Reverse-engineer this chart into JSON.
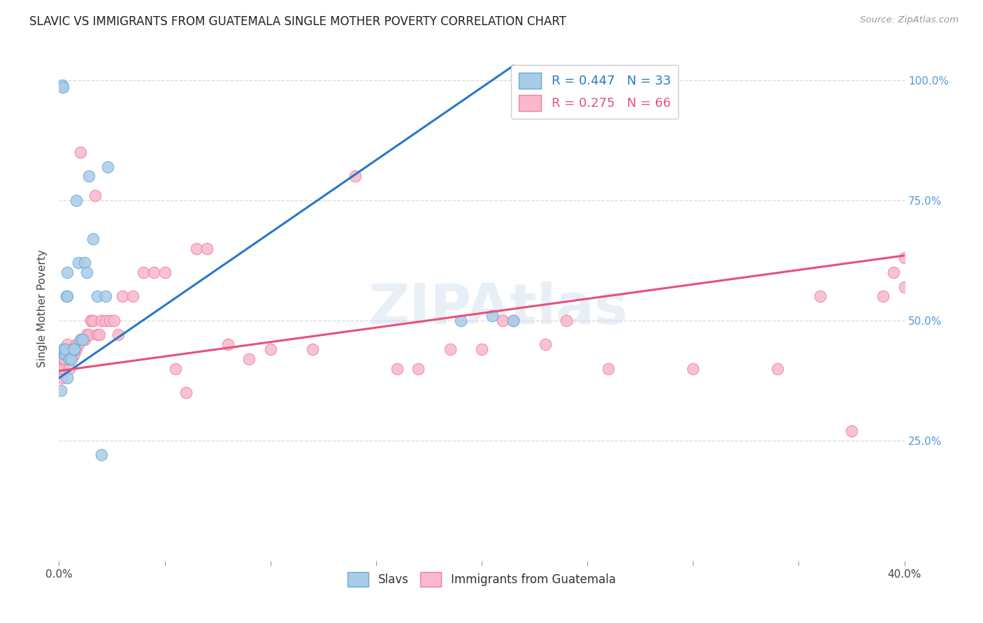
{
  "title": "SLAVIC VS IMMIGRANTS FROM GUATEMALA SINGLE MOTHER POVERTY CORRELATION CHART",
  "source": "Source: ZipAtlas.com",
  "ylabel": "Single Mother Poverty",
  "legend_label_1": "R = 0.447   N = 33",
  "legend_label_2": "R = 0.275   N = 66",
  "legend_label_bottom_1": "Slavs",
  "legend_label_bottom_2": "Immigrants from Guatemala",
  "watermark": "ZIPAtlas",
  "slavs_color": "#a8cce8",
  "slavs_edge_color": "#6aaad4",
  "guatemala_color": "#f9b8cc",
  "guatemala_edge_color": "#f080a0",
  "slavs_line_color": "#2878c8",
  "guatemala_line_color": "#e8507a",
  "background_color": "#ffffff",
  "grid_color": "#d8d8d8",
  "slavs_x": [
    0.0008,
    0.0015,
    0.0018,
    0.002,
    0.002,
    0.0025,
    0.003,
    0.003,
    0.0035,
    0.004,
    0.004,
    0.004,
    0.005,
    0.005,
    0.006,
    0.007,
    0.007,
    0.007,
    0.008,
    0.009,
    0.01,
    0.011,
    0.012,
    0.013,
    0.014,
    0.016,
    0.018,
    0.02,
    0.022,
    0.023,
    0.19,
    0.205,
    0.215
  ],
  "slavs_y": [
    0.355,
    0.99,
    0.985,
    0.44,
    0.435,
    0.43,
    0.43,
    0.44,
    0.55,
    0.55,
    0.6,
    0.38,
    0.42,
    0.42,
    0.42,
    0.44,
    0.44,
    0.44,
    0.75,
    0.62,
    0.46,
    0.46,
    0.62,
    0.6,
    0.8,
    0.67,
    0.55,
    0.22,
    0.55,
    0.82,
    0.5,
    0.51,
    0.5
  ],
  "guatemala_x": [
    0.0005,
    0.001,
    0.0015,
    0.002,
    0.002,
    0.0025,
    0.003,
    0.003,
    0.004,
    0.004,
    0.005,
    0.005,
    0.006,
    0.006,
    0.007,
    0.007,
    0.008,
    0.008,
    0.009,
    0.01,
    0.011,
    0.012,
    0.013,
    0.014,
    0.015,
    0.015,
    0.016,
    0.017,
    0.018,
    0.019,
    0.02,
    0.022,
    0.024,
    0.026,
    0.028,
    0.03,
    0.035,
    0.04,
    0.045,
    0.05,
    0.055,
    0.06,
    0.065,
    0.07,
    0.08,
    0.09,
    0.1,
    0.12,
    0.14,
    0.16,
    0.17,
    0.185,
    0.2,
    0.21,
    0.215,
    0.23,
    0.24,
    0.26,
    0.3,
    0.34,
    0.36,
    0.375,
    0.39,
    0.395,
    0.4,
    0.4
  ],
  "guatemala_y": [
    0.4,
    0.4,
    0.38,
    0.4,
    0.42,
    0.42,
    0.43,
    0.44,
    0.43,
    0.45,
    0.4,
    0.43,
    0.42,
    0.44,
    0.43,
    0.44,
    0.44,
    0.45,
    0.45,
    0.85,
    0.46,
    0.46,
    0.47,
    0.47,
    0.5,
    0.5,
    0.5,
    0.76,
    0.47,
    0.47,
    0.5,
    0.5,
    0.5,
    0.5,
    0.47,
    0.55,
    0.55,
    0.6,
    0.6,
    0.6,
    0.4,
    0.35,
    0.65,
    0.65,
    0.45,
    0.42,
    0.44,
    0.44,
    0.8,
    0.4,
    0.4,
    0.44,
    0.44,
    0.5,
    0.5,
    0.45,
    0.5,
    0.4,
    0.4,
    0.4,
    0.55,
    0.27,
    0.55,
    0.6,
    0.57,
    0.63
  ],
  "slavs_line_x": [
    0.0,
    0.215
  ],
  "slavs_line_y": [
    0.38,
    1.03
  ],
  "guatemala_line_x": [
    0.0,
    0.4
  ],
  "guatemala_line_y": [
    0.395,
    0.635
  ],
  "xmin": 0.0,
  "xmax": 0.4,
  "ymin": 0.0,
  "ymax": 1.05,
  "right_yticks": [
    0.0,
    0.25,
    0.5,
    0.75,
    1.0
  ],
  "right_yticklabels": [
    "",
    "25.0%",
    "50.0%",
    "75.0%",
    "100.0%"
  ],
  "x_minor_ticks": [
    0.05,
    0.1,
    0.15,
    0.2,
    0.25,
    0.3,
    0.35
  ],
  "title_fontsize": 12,
  "axis_fontsize": 11,
  "right_tick_color": "#5599dd"
}
